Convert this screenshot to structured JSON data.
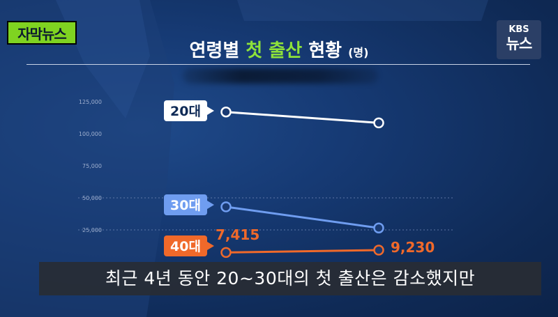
{
  "badge_label": "자막뉴스",
  "logo": {
    "line1": "KBS",
    "line2": "뉴스"
  },
  "title": {
    "part1": "연령별 ",
    "highlight": "첫 출산",
    "part2": " 현황",
    "unit": "(명)"
  },
  "caption": "최근 4년 동안 20~30대의 첫 출산은 감소했지만",
  "colors": {
    "age20": "#ffffff",
    "age30": "#6f9df0",
    "age40": "#f0692a",
    "accent": "#8ee23a",
    "badge": "#7fd321"
  },
  "chart_data": {
    "type": "line",
    "yticks": [
      "125,000",
      "100,000",
      "75,000",
      "50,000",
      "25,000"
    ],
    "ytick_values": [
      125000,
      100000,
      75000,
      50000,
      25000
    ],
    "ylim": [
      0,
      125000
    ],
    "series": [
      {
        "name": "20대",
        "values": [
          117000,
          108500
        ],
        "color": "#ffffff"
      },
      {
        "name": "30대",
        "values": [
          43000,
          26500
        ],
        "color": "#6f9df0"
      },
      {
        "name": "40대",
        "values": [
          7415,
          9230
        ],
        "color": "#f0692a",
        "labels": [
          "7,415",
          "9,230"
        ]
      }
    ]
  }
}
